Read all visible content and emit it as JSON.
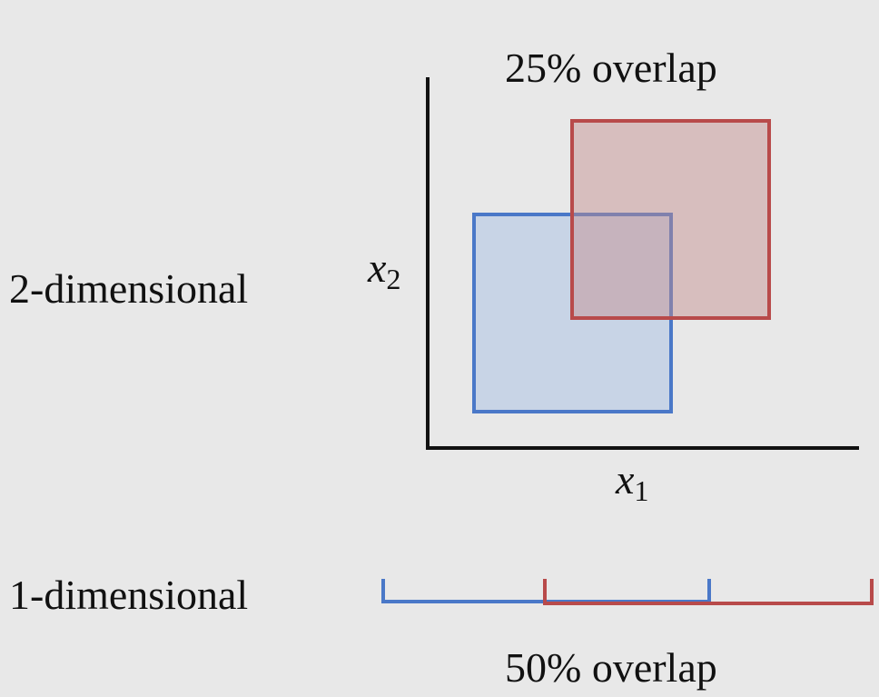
{
  "two_d": {
    "row_label": "2-dimensional",
    "title": "25% overlap",
    "x_axis": {
      "var": "x",
      "sub": "1"
    },
    "y_axis": {
      "var": "x",
      "sub": "2"
    },
    "colors": {
      "blue": "#4a78c8",
      "red": "#b84a4a",
      "blue_fill": "#c8d4e6",
      "red_fill": "#dcc4c4"
    }
  },
  "one_d": {
    "row_label": "1-dimensional",
    "title": "50% overlap"
  }
}
